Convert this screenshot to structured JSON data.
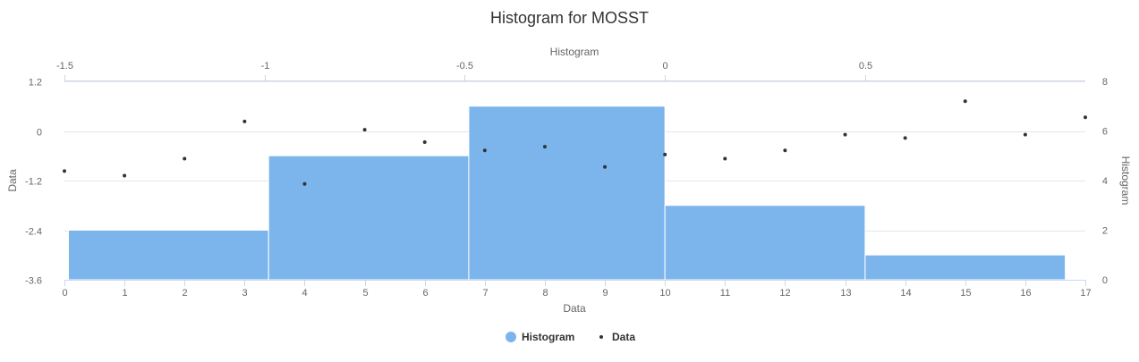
{
  "chart_data": {
    "type": "bar",
    "title": "Histogram for MOSST",
    "bottom_axis": {
      "label": "Data",
      "range": [
        0,
        17
      ],
      "ticks": [
        "0",
        "1",
        "2",
        "3",
        "4",
        "5",
        "6",
        "7",
        "8",
        "9",
        "10",
        "11",
        "12",
        "13",
        "14",
        "15",
        "16",
        "17"
      ]
    },
    "top_axis": {
      "label": "Histogram",
      "range": [
        -1.5,
        1.05
      ],
      "ticks": [
        -1.5,
        -1,
        -0.5,
        0,
        0.5
      ],
      "tick_labels": [
        "-1.5",
        "-1",
        "-0.5",
        "0",
        "0.5"
      ]
    },
    "left_axis": {
      "label": "Data",
      "range": [
        -3.6,
        1.2
      ],
      "ticks": [
        1.2,
        0,
        -1.2,
        -2.4,
        -3.6
      ],
      "tick_labels": [
        "1.2",
        "0",
        "-1.2",
        "-2.4",
        "-3.6"
      ]
    },
    "right_axis": {
      "label": "Histogram",
      "range": [
        0,
        8
      ],
      "ticks": [
        8,
        6,
        4,
        2,
        0
      ],
      "tick_labels": [
        "8",
        "6",
        "4",
        "2",
        "0"
      ]
    },
    "series": [
      {
        "name": "Histogram",
        "type": "bar",
        "color": "#7cb5ec",
        "bins": [
          {
            "x0": -1.49,
            "x1": -0.99,
            "count": 2
          },
          {
            "x0": -0.99,
            "x1": -0.49,
            "count": 5
          },
          {
            "x0": -0.49,
            "x1": 0.0,
            "count": 7
          },
          {
            "x0": 0.0,
            "x1": 0.5,
            "count": 3
          },
          {
            "x0": 0.5,
            "x1": 1.0,
            "count": 1
          }
        ]
      },
      {
        "name": "Data",
        "type": "scatter",
        "color": "#333333",
        "x": [
          0,
          1,
          2,
          3,
          4,
          5,
          6,
          7,
          8,
          9,
          10,
          11,
          12,
          13,
          14,
          15,
          16,
          17
        ],
        "y": [
          -0.97,
          -1.08,
          -0.67,
          0.23,
          -1.28,
          0.03,
          -0.27,
          -0.47,
          -0.38,
          -0.87,
          -0.57,
          -0.67,
          -0.47,
          -0.09,
          -0.17,
          0.72,
          -0.09,
          0.33
        ]
      }
    ],
    "legend": {
      "position": "bottom-center",
      "items": [
        "Histogram",
        "Data"
      ]
    },
    "grid": "horizontal"
  }
}
